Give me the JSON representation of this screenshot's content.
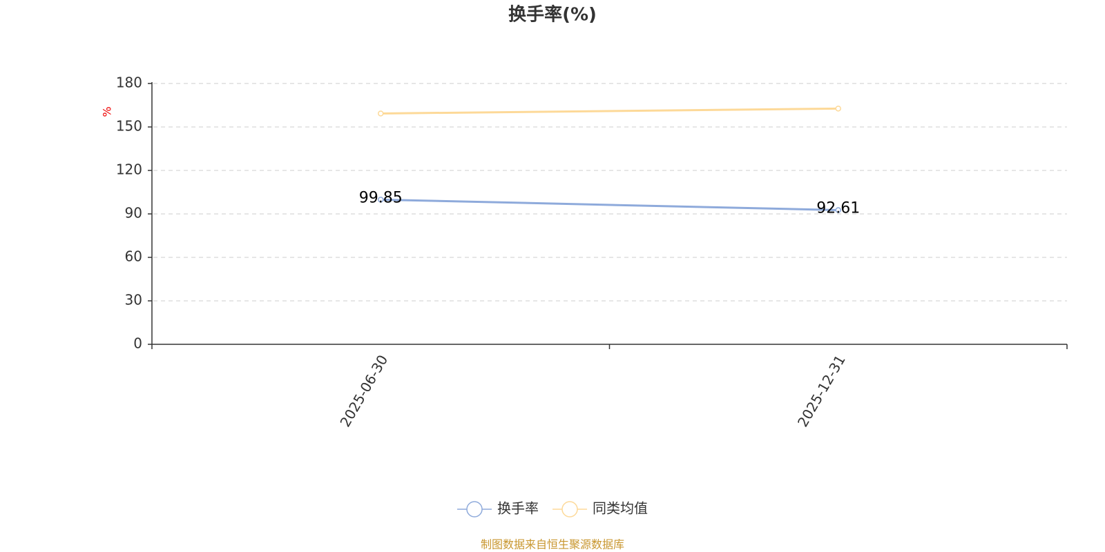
{
  "chart_data": {
    "type": "line",
    "title": "换手率(%)",
    "y_label": "%",
    "categories": [
      "2025-06-30",
      "2025-12-31"
    ],
    "series": [
      {
        "name": "换手率",
        "color": "#8eaadb",
        "values": [
          99.85,
          92.61
        ],
        "labels": true
      },
      {
        "name": "同类均值",
        "color": "#fdd998",
        "values": [
          159.3,
          162.7
        ]
      }
    ],
    "ylim": [
      0,
      180
    ],
    "yticks": [
      0,
      30,
      60,
      90,
      120,
      150,
      180
    ],
    "grid": true,
    "source": "制图数据来自恒生聚源数据库"
  }
}
